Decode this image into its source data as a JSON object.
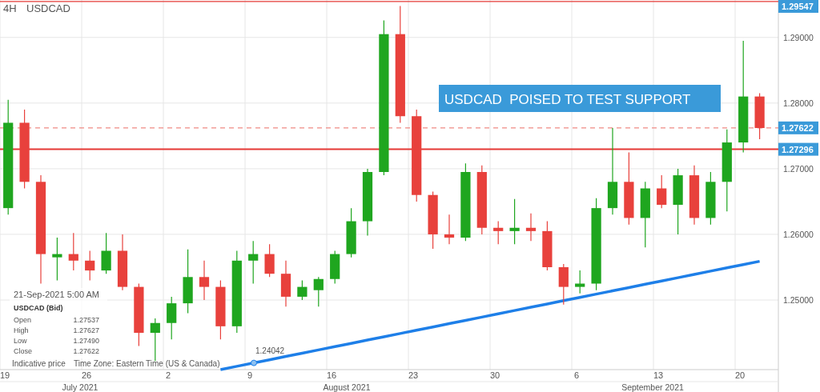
{
  "chart_data": {
    "type": "candlestick",
    "title": "4H",
    "subtitle": "USDCAD",
    "categories": [
      "19",
      null,
      null,
      null,
      null,
      "26",
      null,
      null,
      null,
      null,
      "2",
      null,
      null,
      null,
      null,
      "9",
      null,
      null,
      null,
      null,
      "16",
      null,
      null,
      null,
      null,
      "23",
      null,
      null,
      null,
      null,
      "30",
      null,
      null,
      null,
      null,
      "6",
      null,
      null,
      null,
      null,
      "13",
      null,
      null,
      null,
      null,
      "20",
      null
    ],
    "ohlc": [
      [
        1.264,
        1.2805,
        1.263,
        1.277
      ],
      [
        1.277,
        1.279,
        1.267,
        1.268
      ],
      [
        1.268,
        1.269,
        1.2525,
        1.257
      ],
      [
        1.2565,
        1.2595,
        1.253,
        1.257
      ],
      [
        1.257,
        1.2602,
        1.2545,
        1.256
      ],
      [
        1.256,
        1.2575,
        1.253,
        1.2545
      ],
      [
        1.2545,
        1.2602,
        1.254,
        1.2575
      ],
      [
        1.2575,
        1.26,
        1.2515,
        1.252
      ],
      [
        1.252,
        1.2525,
        1.243,
        1.245
      ],
      [
        1.245,
        1.2472,
        1.2407,
        1.2465
      ],
      [
        1.2465,
        1.2505,
        1.244,
        1.2495
      ],
      [
        1.2495,
        1.2577,
        1.248,
        1.2535
      ],
      [
        1.2535,
        1.256,
        1.25,
        1.252
      ],
      [
        1.252,
        1.253,
        1.244,
        1.246
      ],
      [
        1.246,
        1.2575,
        1.245,
        1.256
      ],
      [
        1.256,
        1.259,
        1.2525,
        1.257
      ],
      [
        1.257,
        1.2585,
        1.2535,
        1.254
      ],
      [
        1.254,
        1.256,
        1.249,
        1.2505
      ],
      [
        1.2505,
        1.253,
        1.25,
        1.252
      ],
      [
        1.2515,
        1.2535,
        1.249,
        1.2532
      ],
      [
        1.2532,
        1.2575,
        1.2525,
        1.257
      ],
      [
        1.257,
        1.264,
        1.2565,
        1.262
      ],
      [
        1.262,
        1.27,
        1.2598,
        1.2695
      ],
      [
        1.2695,
        1.2926,
        1.269,
        1.2905
      ],
      [
        1.2905,
        1.2948,
        1.277,
        1.278
      ],
      [
        1.278,
        1.279,
        1.265,
        1.266
      ],
      [
        1.266,
        1.2665,
        1.2578,
        1.26
      ],
      [
        1.26,
        1.263,
        1.2585,
        1.2595
      ],
      [
        1.2595,
        1.2708,
        1.259,
        1.2695
      ],
      [
        1.2695,
        1.2705,
        1.26,
        1.261
      ],
      [
        1.261,
        1.262,
        1.2585,
        1.2605
      ],
      [
        1.2605,
        1.2654,
        1.2585,
        1.261
      ],
      [
        1.261,
        1.2632,
        1.259,
        1.2605
      ],
      [
        1.2605,
        1.262,
        1.2545,
        1.255
      ],
      [
        1.255,
        1.2555,
        1.2493,
        1.252
      ],
      [
        1.252,
        1.2545,
        1.251,
        1.2525
      ],
      [
        1.2525,
        1.2655,
        1.2515,
        1.264
      ],
      [
        1.264,
        1.2762,
        1.263,
        1.268
      ],
      [
        1.268,
        1.2725,
        1.2615,
        1.2625
      ],
      [
        1.2625,
        1.268,
        1.258,
        1.267
      ],
      [
        1.267,
        1.269,
        1.264,
        1.2645
      ],
      [
        1.2645,
        1.27,
        1.26,
        1.269
      ],
      [
        1.269,
        1.2705,
        1.2615,
        1.2625
      ],
      [
        1.2625,
        1.2695,
        1.2615,
        1.268
      ],
      [
        1.268,
        1.276,
        1.2635,
        1.274
      ],
      [
        1.274,
        1.2895,
        1.2725,
        1.281
      ],
      [
        1.281,
        1.2815,
        1.2745,
        1.2762
      ]
    ],
    "series": [
      {
        "type": "line",
        "color": "#1e7fe8",
        "values": [
          null,
          null,
          null,
          null,
          null,
          null,
          null,
          null,
          null,
          null,
          null,
          null,
          null,
          1.2394,
          1.2399,
          1.2404,
          1.2409,
          1.2414,
          1.2419,
          1.2424,
          1.2429,
          1.2434,
          1.2439,
          1.2444,
          1.2449,
          1.2454,
          1.2459,
          1.2464,
          1.2469,
          1.2474,
          1.2479,
          1.2484,
          1.2489,
          1.2494,
          1.2499,
          1.2504,
          1.2509,
          1.2514,
          1.2519,
          1.2524,
          1.2529,
          1.2534,
          1.2539,
          1.2544,
          1.2549,
          1.2554,
          1.2559
        ]
      }
    ],
    "ylim": [
      1.2394,
      1.2957
    ],
    "yticks": [
      {
        "value": 1.25,
        "label": "1.25000"
      },
      {
        "value": 1.26,
        "label": "1.26000"
      },
      {
        "value": 1.27,
        "label": "1.27000"
      },
      {
        "value": 1.28,
        "label": "1.28000"
      },
      {
        "value": 1.29,
        "label": "1.29000"
      }
    ],
    "grid": true,
    "ref_lines": [
      {
        "axis": "y",
        "value": 1.29547,
        "label": "1.29547",
        "color": "#e53935",
        "line_style": "solid"
      },
      {
        "axis": "y",
        "value": 1.27622,
        "label": "1.27622",
        "color": "#f08a84",
        "line_style": "dashed"
      },
      {
        "axis": "y",
        "value": 1.27296,
        "label": "1.27296",
        "color": "#e53935",
        "line_style": "solid"
      }
    ],
    "annotations": [
      "USDCAD  POISED TO TEST SUPPORT",
      "21-Sep-2021 5:00 AM",
      "USDCAD (Bid)",
      "Open",
      "1.27537",
      "High",
      "1.27627",
      "Low",
      "1.27490",
      "Close",
      "1.27622",
      "Indicative price",
      "Time Zone: Eastern Time (US & Canada)",
      "July 2021",
      "August 2021",
      "September 2021",
      {
        "text": "1.24042",
        "y": 1.24042
      }
    ]
  }
}
